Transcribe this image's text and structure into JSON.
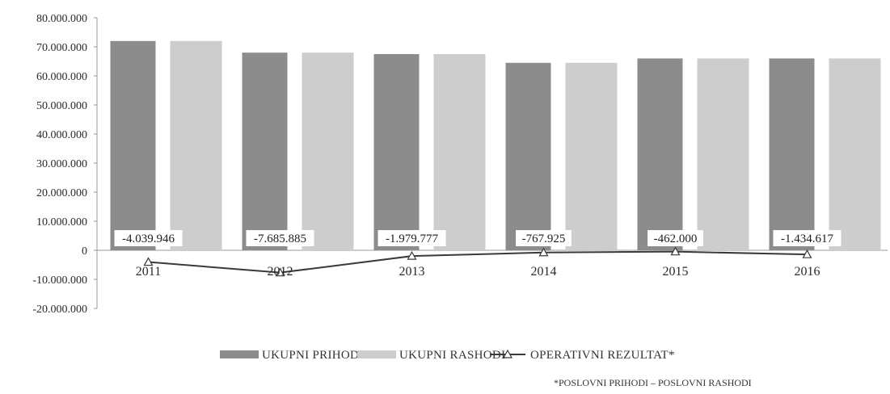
{
  "chart_data": {
    "type": "bar",
    "categories": [
      "2011",
      "2012",
      "2013",
      "2014",
      "2015",
      "2016"
    ],
    "series": [
      {
        "name": "UKUPNI PRIHODI",
        "type": "bar",
        "color": "#8c8c8c",
        "values": [
          72000000,
          68000000,
          67500000,
          64500000,
          66000000,
          66000000
        ]
      },
      {
        "name": "UKUPNI RASHODI",
        "type": "bar",
        "color": "#cdcdcd",
        "values": [
          72000000,
          68000000,
          67500000,
          64500000,
          66000000,
          66000000
        ]
      },
      {
        "name": "OPERATIVNI REZULTAT*",
        "type": "line",
        "color": "#3a3a3a",
        "values": [
          -4039946,
          -7685885,
          -1979777,
          -767925,
          -462000,
          -1434617
        ]
      }
    ],
    "data_labels": [
      "-4.039.946",
      "-7.685.885",
      "-1.979.777",
      "-767.925",
      "-462.000",
      "-1.434.617"
    ],
    "y_ticks": [
      "80.000.000",
      "70.000.000",
      "60.000.000",
      "50.000.000",
      "40.000.000",
      "30.000.000",
      "20.000.000",
      "10.000.000",
      "0",
      "-10.000.000",
      "-20.000.000"
    ],
    "ylim": [
      -20000000,
      80000000
    ],
    "grid": false,
    "legend_position": "bottom",
    "footnote": "*POSLOVNI PRIHODI – POSLOVNI RASHODI"
  }
}
